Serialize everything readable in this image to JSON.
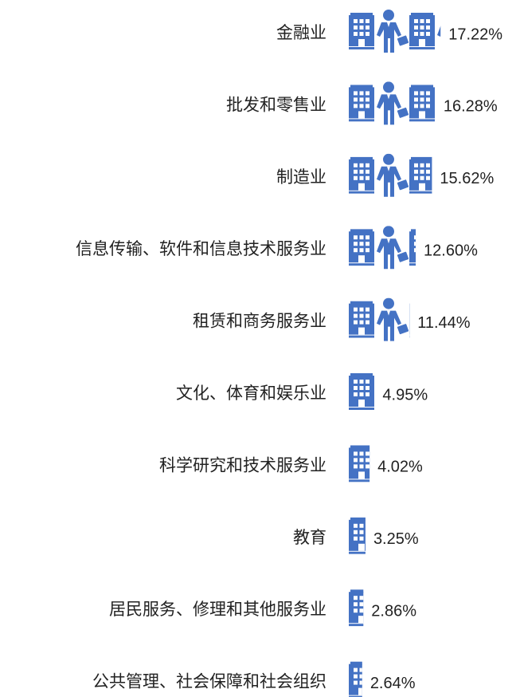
{
  "chart_data": {
    "type": "bar",
    "orientation": "horizontal",
    "categories": [
      "金融业",
      "批发和零售业",
      "制造业",
      "信息传输、软件和信息技术服务业",
      "租赁和商务服务业",
      "文化、体育和娱乐业",
      "科学研究和技术服务业",
      "教育",
      "居民服务、修理和其他服务业",
      "公共管理、社会保障和社会组织"
    ],
    "values": [
      17.22,
      16.28,
      15.62,
      12.6,
      11.44,
      4.95,
      4.02,
      3.25,
      2.86,
      2.64
    ],
    "value_labels": [
      "17.22%",
      "16.28%",
      "15.62%",
      "12.60%",
      "11.44%",
      "4.95%",
      "4.02%",
      "3.25%",
      "2.86%",
      "2.64%"
    ],
    "color": "#4472c4"
  }
}
